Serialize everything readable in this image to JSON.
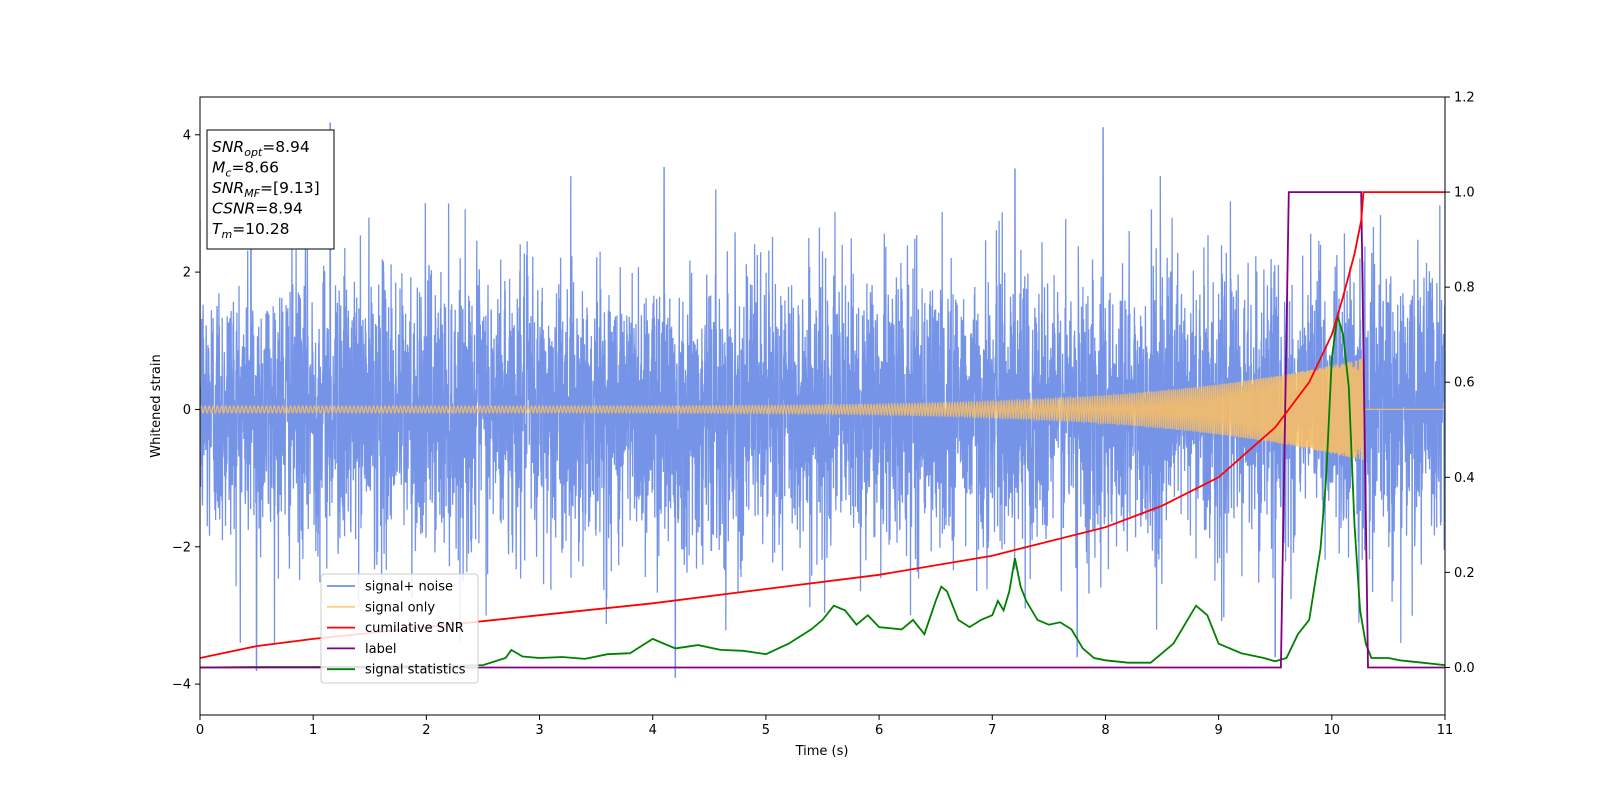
{
  "chart_data": {
    "type": "line",
    "xlabel": "Time (s)",
    "ylabel": "Whitened strain",
    "xlim": [
      0,
      11
    ],
    "ylim_left": [
      -4.45,
      4.55
    ],
    "ylim_right": [
      -0.1,
      1.2
    ],
    "x_ticks": [
      "0",
      "1",
      "2",
      "3",
      "4",
      "5",
      "6",
      "7",
      "8",
      "9",
      "10",
      "11"
    ],
    "y_ticks_left": [
      "4",
      "2",
      "0",
      "−2",
      "−4"
    ],
    "y_ticks_right": [
      "1.2",
      "1.0",
      "0.8",
      "0.6",
      "0.4",
      "0.2",
      "0.0"
    ],
    "grid": false,
    "legend_position": "lower-left",
    "info_box": [
      {
        "sym": "SNR",
        "sub": "opt",
        "val": "=8.94"
      },
      {
        "sym": "M",
        "sub": "c",
        "val": "=8.66"
      },
      {
        "sym": "SNR",
        "sub": "MF",
        "val": "=[9.13]"
      },
      {
        "sym": "CSNR",
        "sub": "",
        "val": "=8.94"
      },
      {
        "sym": "T",
        "sub": "m",
        "val": "=10.28"
      }
    ],
    "series": [
      {
        "name": "signal+ noise",
        "color": "#6f8ee6",
        "axis": "left",
        "kind": "noise",
        "noise_sigma": 1.0,
        "peak_annotations": [
          [
            0.45,
            3.5
          ],
          [
            1.15,
            4.17
          ],
          [
            4.1,
            3.52
          ],
          [
            7.2,
            3.5
          ],
          [
            7.98,
            4.1
          ],
          [
            0.5,
            -3.8
          ],
          [
            4.2,
            -3.9
          ],
          [
            7.75,
            -3.6
          ],
          [
            9.5,
            -3.6
          ]
        ]
      },
      {
        "name": "signal only",
        "color": "#ffbf5f",
        "axis": "left",
        "kind": "chirp",
        "t_merge": 10.28,
        "amplitude_start": 0.05,
        "amplitude_end": 0.75
      },
      {
        "name": "cumilative SNR",
        "color": "#ff0000",
        "axis": "right",
        "x": [
          0.0,
          0.5,
          1.0,
          2.0,
          3.0,
          4.0,
          5.0,
          6.0,
          7.0,
          8.0,
          8.5,
          9.0,
          9.5,
          9.8,
          10.0,
          10.1,
          10.2,
          10.26,
          10.28,
          11.0
        ],
        "y": [
          0.02,
          0.045,
          0.06,
          0.085,
          0.11,
          0.135,
          0.165,
          0.195,
          0.235,
          0.295,
          0.34,
          0.4,
          0.505,
          0.6,
          0.7,
          0.78,
          0.87,
          0.94,
          1.0,
          1.0
        ]
      },
      {
        "name": "label",
        "color": "#800080",
        "axis": "right",
        "x": [
          0.0,
          9.55,
          9.62,
          10.26,
          10.32,
          11.0
        ],
        "y": [
          0.0,
          0.0,
          1.0,
          1.0,
          0.0,
          0.0
        ]
      },
      {
        "name": "signal statistics",
        "color": "#008000",
        "axis": "right",
        "x": [
          0.0,
          0.5,
          1.0,
          1.5,
          2.0,
          2.5,
          2.7,
          2.75,
          2.85,
          3.0,
          3.2,
          3.4,
          3.6,
          3.8,
          4.0,
          4.2,
          4.4,
          4.6,
          4.8,
          5.0,
          5.2,
          5.4,
          5.5,
          5.6,
          5.7,
          5.8,
          5.9,
          6.0,
          6.2,
          6.3,
          6.4,
          6.5,
          6.55,
          6.6,
          6.7,
          6.8,
          6.9,
          7.0,
          7.05,
          7.1,
          7.15,
          7.2,
          7.25,
          7.3,
          7.4,
          7.5,
          7.6,
          7.7,
          7.8,
          7.9,
          8.0,
          8.2,
          8.4,
          8.6,
          8.7,
          8.8,
          8.9,
          9.0,
          9.2,
          9.4,
          9.5,
          9.6,
          9.7,
          9.8,
          9.9,
          9.95,
          10.0,
          10.05,
          10.1,
          10.15,
          10.2,
          10.25,
          10.3,
          10.35,
          10.4,
          10.5,
          10.6,
          10.8,
          11.0
        ],
        "y": [
          0.0,
          0.001,
          0.001,
          0.002,
          0.003,
          0.005,
          0.02,
          0.037,
          0.023,
          0.02,
          0.022,
          0.018,
          0.028,
          0.03,
          0.06,
          0.04,
          0.047,
          0.037,
          0.035,
          0.028,
          0.05,
          0.08,
          0.1,
          0.13,
          0.12,
          0.09,
          0.11,
          0.085,
          0.08,
          0.1,
          0.07,
          0.14,
          0.17,
          0.16,
          0.1,
          0.085,
          0.1,
          0.11,
          0.14,
          0.12,
          0.16,
          0.23,
          0.17,
          0.14,
          0.1,
          0.09,
          0.095,
          0.08,
          0.04,
          0.02,
          0.015,
          0.01,
          0.01,
          0.05,
          0.09,
          0.13,
          0.11,
          0.05,
          0.03,
          0.02,
          0.013,
          0.02,
          0.07,
          0.1,
          0.25,
          0.4,
          0.65,
          0.74,
          0.7,
          0.59,
          0.3,
          0.12,
          0.05,
          0.02,
          0.02,
          0.02,
          0.015,
          0.01,
          0.005
        ]
      }
    ]
  }
}
